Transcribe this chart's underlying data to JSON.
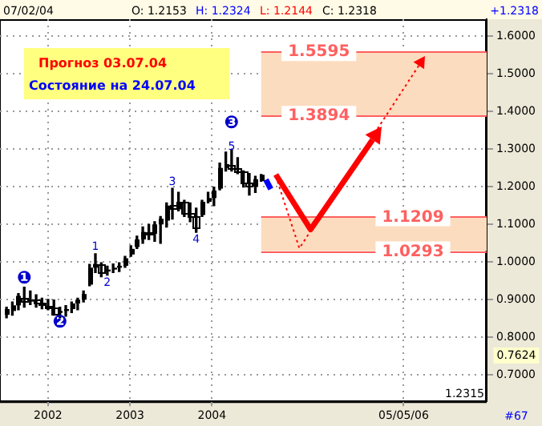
{
  "chart_data": {
    "type": "candlestick",
    "title": "Прогноз 03.07.04",
    "subtitle": "Состояние на 24.07.04",
    "color": "#000000",
    "x": [
      "2001-06-30",
      "2001-07-26",
      "2001-08-22",
      "2001-09-17",
      "2001-10-14",
      "2001-11-09",
      "2001-12-05",
      "2002-01-01",
      "2002-01-27",
      "2002-02-23",
      "2002-03-21",
      "2002-04-16",
      "2002-05-13",
      "2002-06-08",
      "2002-07-05",
      "2002-07-31",
      "2002-08-26",
      "2002-09-22",
      "2002-10-18",
      "2002-11-14",
      "2002-12-10",
      "2003-01-05",
      "2003-02-01",
      "2003-02-27",
      "2003-03-26",
      "2003-04-21",
      "2003-05-17",
      "2003-06-13",
      "2003-07-09",
      "2003-08-05",
      "2003-08-31",
      "2003-09-26",
      "2003-10-23",
      "2003-11-18",
      "2003-12-15",
      "2004-01-10",
      "2004-02-05",
      "2004-03-03",
      "2004-03-29",
      "2004-04-25",
      "2004-05-21",
      "2004-06-16",
      "2004-07-13",
      "2004-08-08"
    ],
    "ohlc": [
      [
        0.86,
        0.88,
        0.852,
        0.875
      ],
      [
        0.87,
        0.894,
        0.859,
        0.885
      ],
      [
        0.885,
        0.916,
        0.873,
        0.91
      ],
      [
        0.905,
        0.933,
        0.88,
        0.895
      ],
      [
        0.895,
        0.923,
        0.887,
        0.9
      ],
      [
        0.9,
        0.913,
        0.88,
        0.89
      ],
      [
        0.89,
        0.904,
        0.876,
        0.885
      ],
      [
        0.885,
        0.901,
        0.873,
        0.88
      ],
      [
        0.88,
        0.899,
        0.859,
        0.865
      ],
      [
        0.865,
        0.88,
        0.852,
        0.87
      ],
      [
        0.87,
        0.884,
        0.856,
        0.875
      ],
      [
        0.875,
        0.894,
        0.866,
        0.89
      ],
      [
        0.89,
        0.904,
        0.873,
        0.9
      ],
      [
        0.9,
        0.923,
        0.894,
        0.915
      ],
      [
        0.94,
        0.994,
        0.937,
        0.985
      ],
      [
        0.985,
        1.022,
        0.972,
        0.995
      ],
      [
        0.995,
        0.998,
        0.961,
        0.975
      ],
      [
        0.975,
        0.989,
        0.965,
        0.98
      ],
      [
        0.98,
        0.995,
        0.972,
        0.985
      ],
      [
        0.985,
        0.998,
        0.975,
        0.99
      ],
      [
        0.99,
        1.015,
        0.986,
        1.01
      ],
      [
        1.02,
        1.043,
        1.015,
        1.035
      ],
      [
        1.04,
        1.069,
        1.036,
        1.06
      ],
      [
        1.06,
        1.093,
        1.05,
        1.08
      ],
      [
        1.08,
        1.1,
        1.06,
        1.075
      ],
      [
        1.075,
        1.107,
        1.055,
        1.1
      ],
      [
        1.1,
        1.121,
        1.05,
        1.115
      ],
      [
        1.11,
        1.157,
        1.093,
        1.15
      ],
      [
        1.15,
        1.196,
        1.114,
        1.14
      ],
      [
        1.14,
        1.185,
        1.136,
        1.16
      ],
      [
        1.16,
        1.164,
        1.121,
        1.13
      ],
      [
        1.13,
        1.157,
        1.107,
        1.12
      ],
      [
        1.12,
        1.143,
        1.079,
        1.09
      ],
      [
        1.125,
        1.164,
        1.121,
        1.16
      ],
      [
        1.16,
        1.185,
        1.157,
        1.17
      ],
      [
        1.17,
        1.199,
        1.15,
        1.19
      ],
      [
        1.195,
        1.263,
        1.192,
        1.25
      ],
      [
        1.25,
        1.292,
        1.242,
        1.26
      ],
      [
        1.26,
        1.299,
        1.242,
        1.25
      ],
      [
        1.25,
        1.277,
        1.235,
        1.24
      ],
      [
        1.24,
        1.242,
        1.199,
        1.21
      ],
      [
        1.21,
        1.235,
        1.178,
        1.2
      ],
      [
        1.2,
        1.228,
        1.185,
        1.22
      ],
      [
        1.2153,
        1.2324,
        1.2144,
        1.2318
      ]
    ],
    "series": [
      {
        "type": "line",
        "color": "#0000ff",
        "x": [
          "2004-08-29",
          "2004-09-20"
        ],
        "values": [
          1.219,
          1.194
        ]
      }
    ],
    "xlim": [
      "2001-06-01",
      "2007-05-10"
    ],
    "xticks": [
      {
        "value": "2002",
        "label": "2002"
      },
      {
        "value": "2003",
        "label": "2003"
      },
      {
        "value": "2004",
        "label": "2004"
      },
      {
        "value": "2006-05-05",
        "label": "05/05/06"
      }
    ],
    "ylim": [
      0.63,
      1.645
    ],
    "yticks": [
      {
        "value": 0.7,
        "label": "0.7000"
      },
      {
        "value": 0.8,
        "label": "0.8000"
      },
      {
        "value": 0.9,
        "label": "0.9000"
      },
      {
        "value": 1.0,
        "label": "1.0000"
      },
      {
        "value": 1.1,
        "label": "1.1000"
      },
      {
        "value": 1.2,
        "label": "1.2000"
      },
      {
        "value": 1.3,
        "label": "1.3000"
      },
      {
        "value": 1.4,
        "label": "1.4000"
      },
      {
        "value": 1.5,
        "label": "1.5000"
      },
      {
        "value": 1.6,
        "label": "1.6000"
      }
    ],
    "bands": [
      {
        "axis": "y",
        "from": 1.0293,
        "to": 1.1209,
        "color": "#fcdcbe"
      },
      {
        "axis": "y",
        "from": 1.3894,
        "to": 1.5595,
        "color": "#fcdcbe"
      }
    ],
    "ref_lines": [
      {
        "axis": "y",
        "value": 1.5595,
        "label": "1.5595",
        "color": "#ff6060"
      },
      {
        "axis": "y",
        "value": 1.3894,
        "label": "1.3894",
        "color": "#ff6060"
      },
      {
        "axis": "y",
        "value": 1.1209,
        "label": "1.1209",
        "color": "#ff6060"
      },
      {
        "axis": "y",
        "value": 1.0293,
        "label": "1.0293",
        "color": "#ff6060"
      }
    ],
    "annotations": [
      "07/02/04",
      "O: 1.2153",
      "H: 1.2324",
      "L: 1.2144",
      "C: 1.2318",
      "+1.2318",
      "0.7624",
      "1.2315",
      "#67",
      {
        "text": "❶",
        "x": "2001-09-17",
        "y": 0.955
      },
      {
        "text": "❷",
        "x": "2002-02-23",
        "y": 0.838
      },
      {
        "text": "❸",
        "x": "2004-03-29",
        "y": 1.299
      },
      {
        "text": "1",
        "x": "2002-07-31",
        "y": 1.04
      },
      {
        "text": "2",
        "x": "2002-09-22",
        "y": 0.944
      },
      {
        "text": "3",
        "x": "2003-07-09",
        "y": 1.213
      },
      {
        "text": "4",
        "x": "2003-10-23",
        "y": 1.06
      },
      {
        "text": "5",
        "x": "2004-03-29",
        "y": 1.306
      }
    ],
    "grid": true
  }
}
